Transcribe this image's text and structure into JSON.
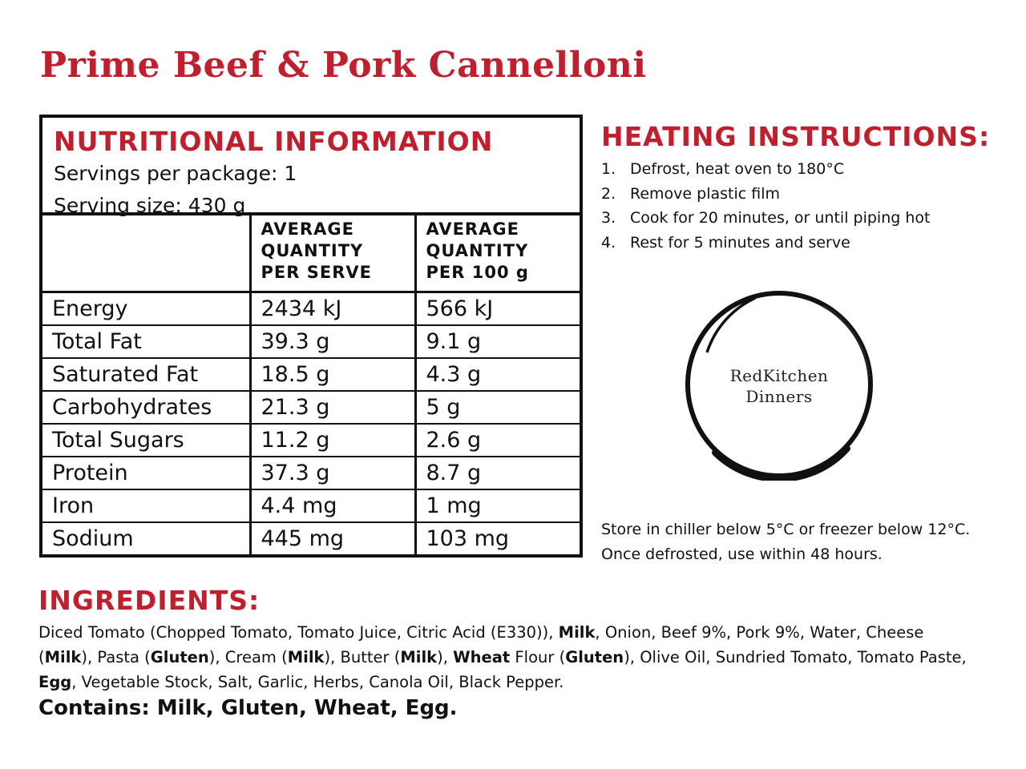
{
  "product": {
    "title": "Prime Beef & Pork Cannelloni"
  },
  "colors": {
    "accent": "#c0202e",
    "text": "#111111"
  },
  "nutrition": {
    "heading": "NUTRITIONAL INFORMATION",
    "servings_per_package": "Servings per package: 1",
    "serving_size": "Serving size: 430 g",
    "columns": [
      "",
      "AVERAGE\nQUANTITY\nPER SERVE",
      "AVERAGE\nQUANTITY\nPER 100 g"
    ],
    "rows": [
      {
        "nutrient": "Energy",
        "per_serve": "2434 kJ",
        "per_100g": "566 kJ"
      },
      {
        "nutrient": "Total Fat",
        "per_serve": "39.3 g",
        "per_100g": "9.1 g"
      },
      {
        "nutrient": "Saturated Fat",
        "per_serve": "18.5 g",
        "per_100g": "4.3 g"
      },
      {
        "nutrient": "Carbohydrates",
        "per_serve": "21.3 g",
        "per_100g": "5 g"
      },
      {
        "nutrient": "Total Sugars",
        "per_serve": "11.2 g",
        "per_100g": "2.6 g"
      },
      {
        "nutrient": "Protein",
        "per_serve": "37.3 g",
        "per_100g": "8.7 g"
      },
      {
        "nutrient": "Iron",
        "per_serve": "4.4 mg",
        "per_100g": "1 mg"
      },
      {
        "nutrient": "Sodium",
        "per_serve": "445 mg",
        "per_100g": "103 mg"
      }
    ]
  },
  "heating": {
    "heading": "HEATING INSTRUCTIONS:",
    "steps": [
      {
        "num": "1.",
        "text": "Defrost, heat oven to 180°C"
      },
      {
        "num": "2.",
        "text": "Remove plastic film"
      },
      {
        "num": "3.",
        "text": "Cook for 20 minutes, or until piping hot"
      },
      {
        "num": "4.",
        "text": "Rest for 5 minutes and serve"
      }
    ]
  },
  "logo": {
    "line1": "RedKitchen",
    "line2": "Dinners"
  },
  "storage": {
    "text": "Store in chiller below 5°C or freezer below 12°C. Once defrosted, use within 48 hours."
  },
  "ingredients": {
    "heading": "INGREDIENTS:",
    "parts": [
      {
        "text": "Diced Tomato (Chopped Tomato, Tomato Juice, Citric Acid (E330)), ",
        "bold": false
      },
      {
        "text": "Milk",
        "bold": true
      },
      {
        "text": ", Onion, Beef 9%, Pork 9%, Water, Cheese (",
        "bold": false
      },
      {
        "text": "Milk",
        "bold": true
      },
      {
        "text": "), Pasta (",
        "bold": false
      },
      {
        "text": "Gluten",
        "bold": true
      },
      {
        "text": "), Cream (",
        "bold": false
      },
      {
        "text": "Milk",
        "bold": true
      },
      {
        "text": "), Butter (",
        "bold": false
      },
      {
        "text": "Milk",
        "bold": true
      },
      {
        "text": "), ",
        "bold": false
      },
      {
        "text": "Wheat",
        "bold": true
      },
      {
        "text": " Flour (",
        "bold": false
      },
      {
        "text": "Gluten",
        "bold": true
      },
      {
        "text": "), Olive Oil, Sundried Tomato, Tomato Paste, ",
        "bold": false
      },
      {
        "text": "Egg",
        "bold": true
      },
      {
        "text": ", Vegetable Stock, Salt, Garlic, Herbs, Canola Oil, Black Pepper.",
        "bold": false
      }
    ],
    "contains": "Contains: Milk, Gluten, Wheat, Egg."
  }
}
